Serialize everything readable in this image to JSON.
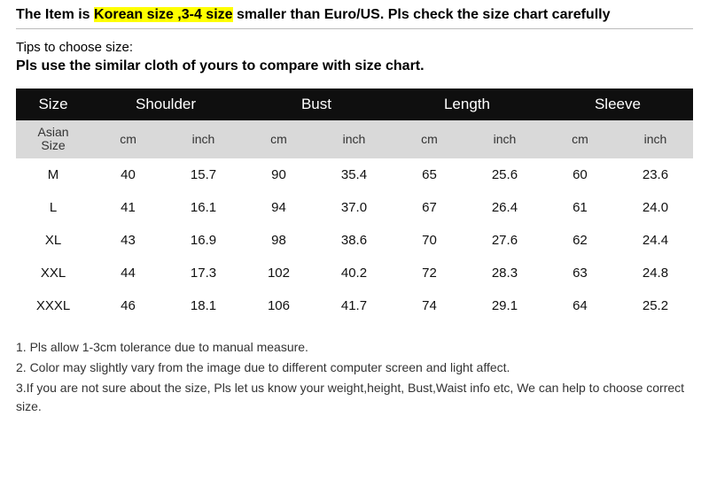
{
  "headline": {
    "prefix": "The Item is ",
    "highlight": "Korean size ,3-4 size",
    "suffix": " smaller than Euro/US. Pls check the size chart carefully"
  },
  "tips": {
    "label": "Tips to choose size:",
    "text": "Pls use the similar cloth of yours to compare with size chart."
  },
  "table": {
    "header": {
      "size": "Size",
      "shoulder": "Shoulder",
      "bust": "Bust",
      "length": "Length",
      "sleeve": "Sleeve"
    },
    "subheader": {
      "asian": "Asian Size",
      "cm": "cm",
      "inch": "inch"
    },
    "rows": [
      {
        "size": "M",
        "shoulder_cm": "40",
        "shoulder_in": "15.7",
        "bust_cm": "90",
        "bust_in": "35.4",
        "length_cm": "65",
        "length_in": "25.6",
        "sleeve_cm": "60",
        "sleeve_in": "23.6"
      },
      {
        "size": "L",
        "shoulder_cm": "41",
        "shoulder_in": "16.1",
        "bust_cm": "94",
        "bust_in": "37.0",
        "length_cm": "67",
        "length_in": "26.4",
        "sleeve_cm": "61",
        "sleeve_in": "24.0"
      },
      {
        "size": "XL",
        "shoulder_cm": "43",
        "shoulder_in": "16.9",
        "bust_cm": "98",
        "bust_in": "38.6",
        "length_cm": "70",
        "length_in": "27.6",
        "sleeve_cm": "62",
        "sleeve_in": "24.4"
      },
      {
        "size": "XXL",
        "shoulder_cm": "44",
        "shoulder_in": "17.3",
        "bust_cm": "102",
        "bust_in": "40.2",
        "length_cm": "72",
        "length_in": "28.3",
        "sleeve_cm": "63",
        "sleeve_in": "24.8"
      },
      {
        "size": "XXXL",
        "shoulder_cm": "46",
        "shoulder_in": "18.1",
        "bust_cm": "106",
        "bust_in": "41.7",
        "length_cm": "74",
        "length_in": "29.1",
        "sleeve_cm": "64",
        "sleeve_in": "25.2"
      }
    ]
  },
  "notes": {
    "n1": "1. Pls allow 1-3cm tolerance due to manual measure.",
    "n2": "2. Color may slightly vary from the image due to different computer screen and light affect.",
    "n3": "3.If you are not sure about the size, Pls let us know your weight,height, Bust,Waist info etc, We can help to choose correct size."
  },
  "style": {
    "highlight_bg": "#ffff00",
    "header_bg": "#0f0f0f",
    "header_fg": "#ffffff",
    "subheader_bg": "#d9d9d9",
    "col_widths": {
      "size": "11%",
      "pair": "11.125%"
    }
  }
}
